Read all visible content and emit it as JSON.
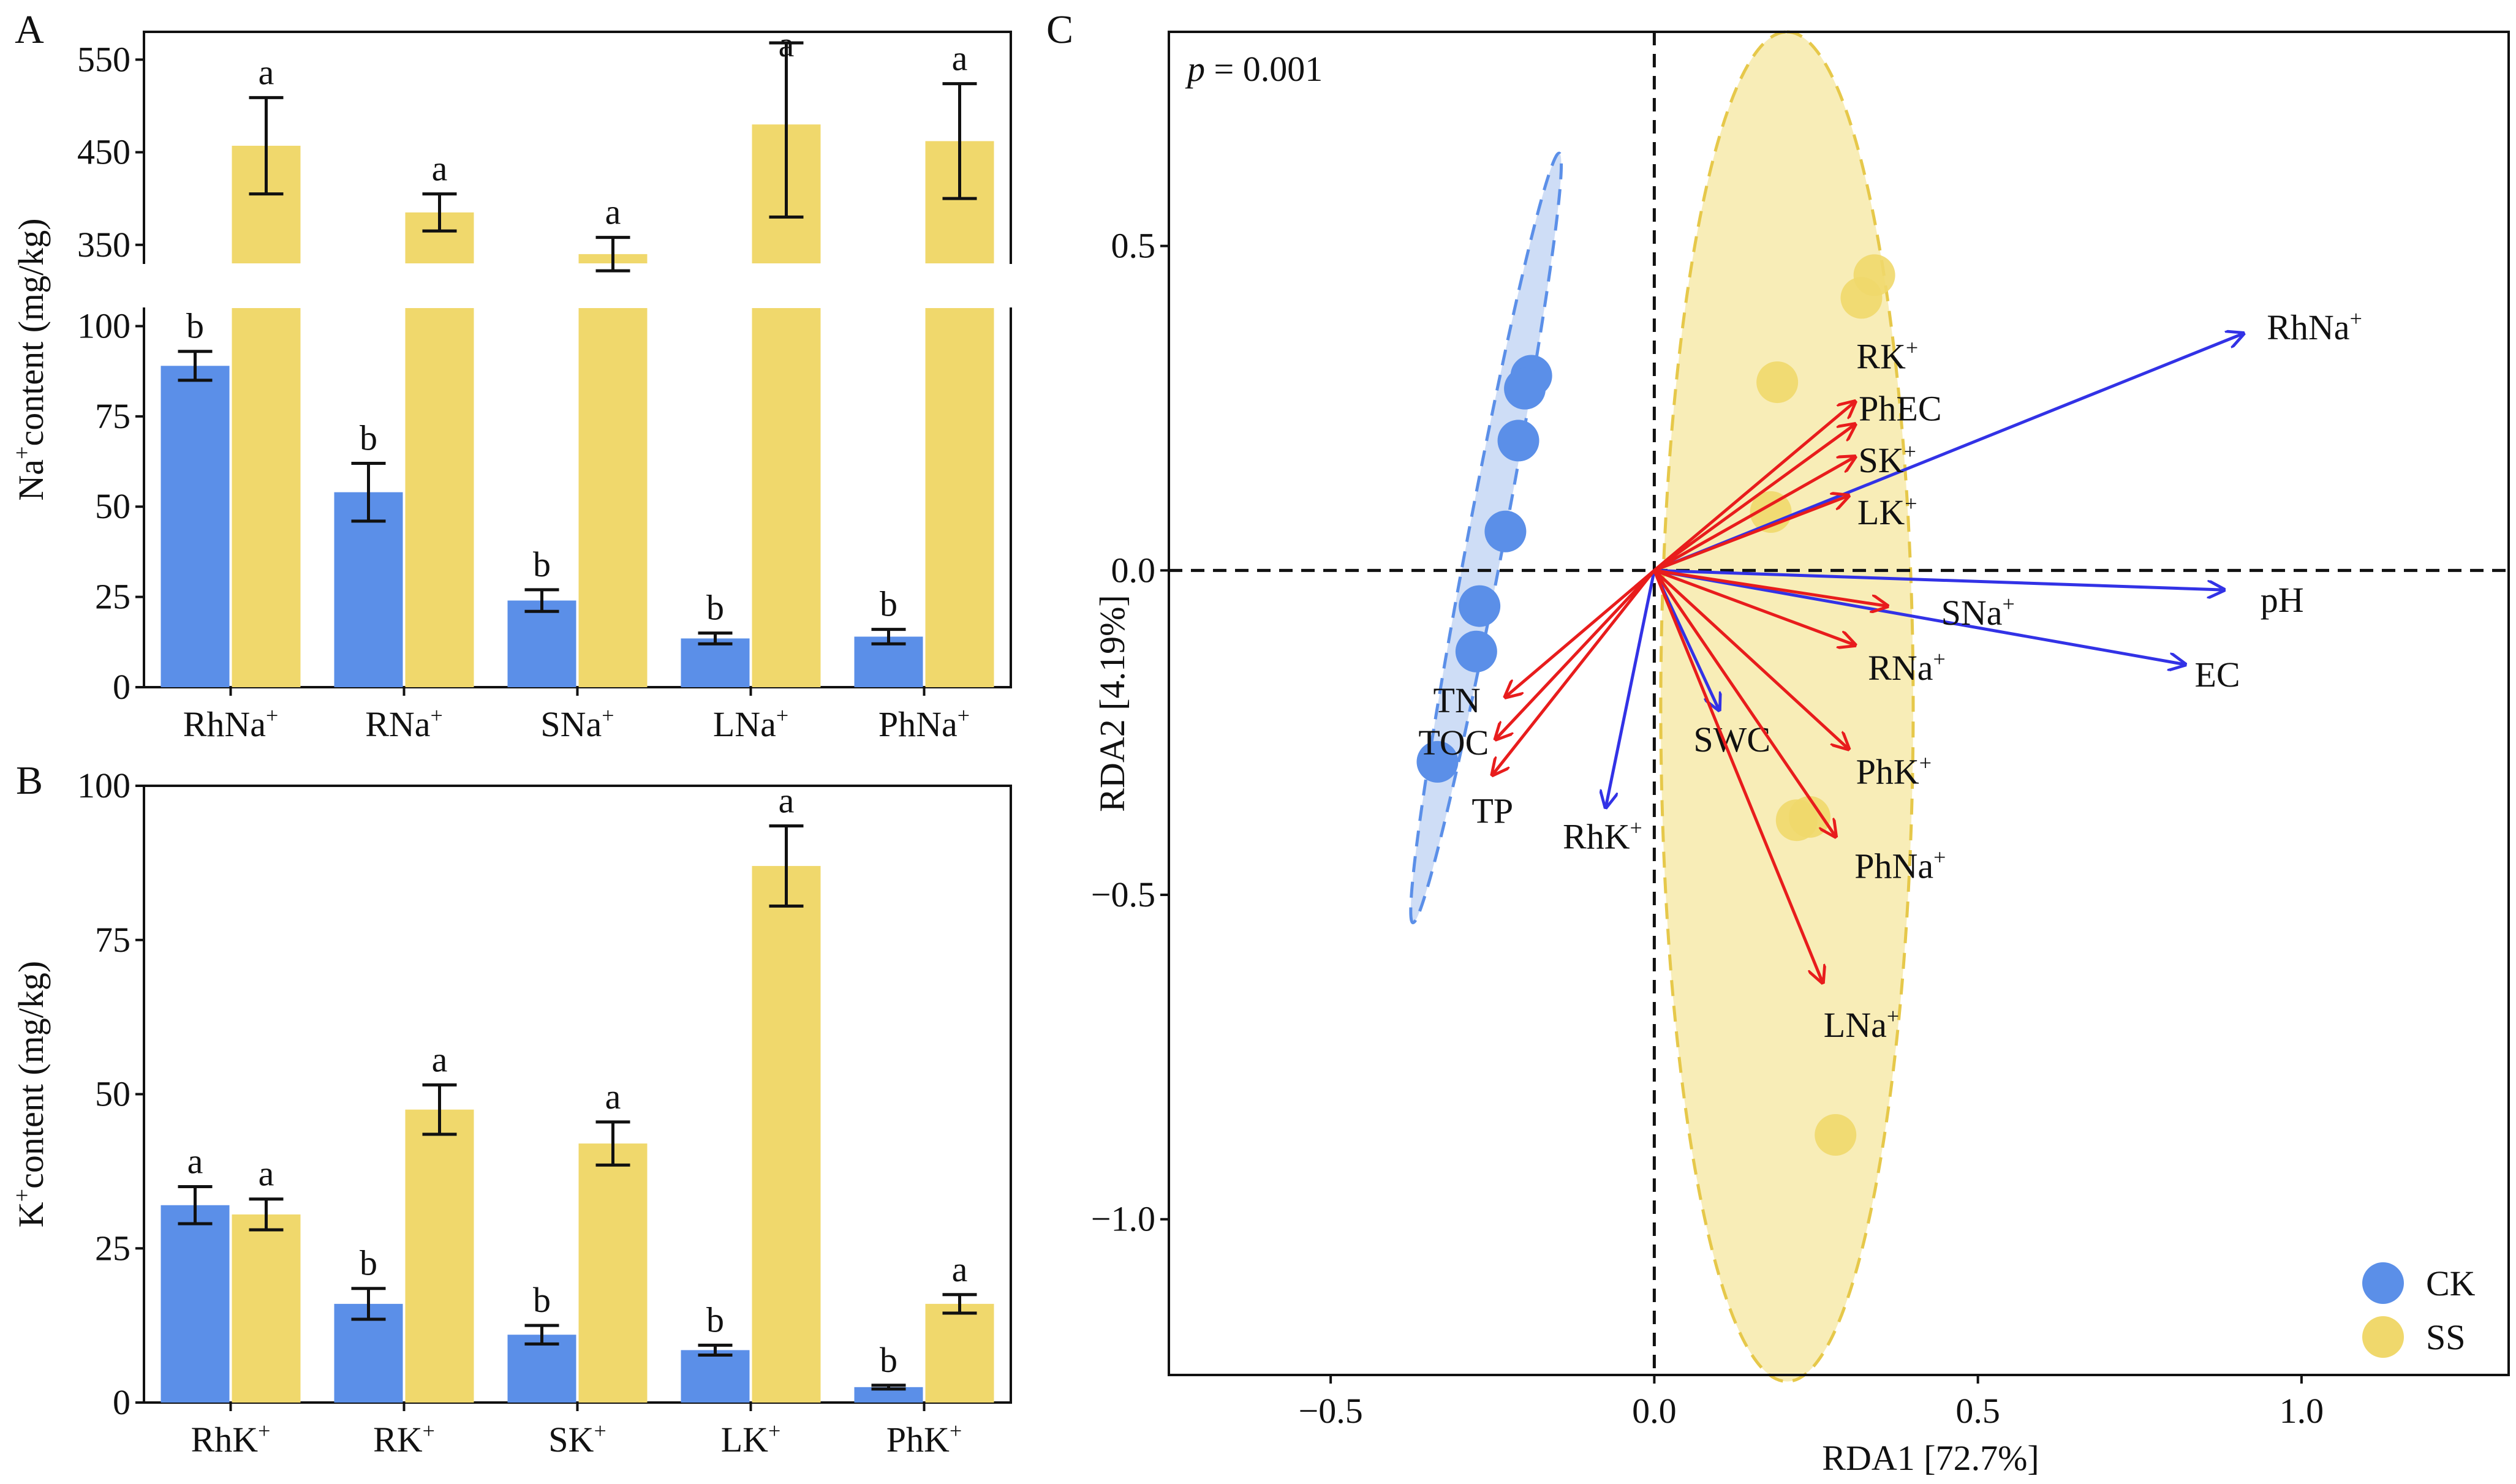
{
  "colors": {
    "ck": "#5b8fe8",
    "ss": "#f0d86c",
    "red_arrow": "#e81c1c",
    "blue_arrow": "#3232e6",
    "ck_ellipse": "#c6d7f4",
    "ss_ellipse": "#f7eaaa"
  },
  "chart_data": [
    {
      "panel": "A",
      "type": "bar",
      "ylabel": "Na+content (mg/kg)",
      "ylabel_main": "Na",
      "ylabel_sup": "+",
      "ylabel_rest": "content (mg/kg)",
      "axis_break": true,
      "ylim_lower": [
        0,
        105
      ],
      "ylim_upper": [
        330,
        580
      ],
      "yticks_lower": [
        0,
        25,
        50,
        75,
        100
      ],
      "yticks_upper": [
        350,
        450,
        550
      ],
      "categories": [
        "RhNa",
        "RNa",
        "SNa",
        "LNa",
        "PhNa"
      ],
      "category_sup": "+",
      "series": [
        {
          "name": "CK",
          "color": "#5b8fe8",
          "values": [
            89,
            54,
            24,
            13.5,
            14
          ],
          "errors": [
            4,
            8,
            3,
            1.5,
            2
          ],
          "letters": [
            "b",
            "b",
            "b",
            "b",
            "b"
          ]
        },
        {
          "name": "SS",
          "color": "#f0d86c",
          "values": [
            457,
            385,
            340,
            480,
            462
          ],
          "errors": [
            52,
            20,
            18,
            100,
            62
          ],
          "letters": [
            "a",
            "a",
            "a",
            "a",
            "a"
          ]
        }
      ]
    },
    {
      "panel": "B",
      "type": "bar",
      "ylabel": "K+content (mg/kg)",
      "ylabel_main": "K",
      "ylabel_sup": "+",
      "ylabel_rest": "content (mg/kg)",
      "ylim": [
        0,
        100
      ],
      "yticks": [
        0,
        25,
        50,
        75,
        100
      ],
      "categories": [
        "RhK",
        "RK",
        "SK",
        "LK",
        "PhK"
      ],
      "category_sup": "+",
      "series": [
        {
          "name": "CK",
          "color": "#5b8fe8",
          "values": [
            32,
            16,
            11,
            8.5,
            2.5
          ],
          "errors": [
            3,
            2.5,
            1.5,
            0.8,
            0.3
          ],
          "letters": [
            "a",
            "b",
            "b",
            "b",
            "b"
          ]
        },
        {
          "name": "SS",
          "color": "#f0d86c",
          "values": [
            30.5,
            47.5,
            42,
            87,
            16
          ],
          "errors": [
            2.5,
            4,
            3.5,
            6.5,
            1.5
          ],
          "letters": [
            "a",
            "a",
            "a",
            "a",
            "a"
          ]
        }
      ]
    },
    {
      "panel": "C",
      "type": "scatter",
      "annotation": "= 0.001",
      "annotation_italic": "p",
      "xlabel": "RDA1 [72.7%]",
      "ylabel": "RDA2 [4.19%]",
      "xlim": [
        -0.75,
        1.32
      ],
      "ylim": [
        -1.24,
        0.83
      ],
      "xticks": [
        -0.5,
        0.0,
        0.5,
        1.0
      ],
      "xtick_labels": [
        "−0.5",
        "0.0",
        "0.5",
        "1.0"
      ],
      "yticks": [
        0.5,
        0.0,
        -0.5,
        -1.0
      ],
      "ytick_labels": [
        "0.5",
        "0.0",
        "−0.5",
        "−1.0"
      ],
      "legend": [
        {
          "name": "CK",
          "color": "#5b8fe8"
        },
        {
          "name": "SS",
          "color": "#f0d86c"
        }
      ],
      "legend_position": "bottom-right",
      "points": {
        "CK": {
          "x": [
            -0.19,
            -0.2,
            -0.21,
            -0.23,
            -0.27,
            -0.275,
            -0.335
          ],
          "y": [
            0.3,
            0.28,
            0.2,
            0.06,
            -0.055,
            -0.125,
            -0.295
          ]
        },
        "SS": {
          "x": [
            0.34,
            0.32,
            0.19,
            0.18,
            0.22,
            0.24,
            0.28
          ],
          "y": [
            0.455,
            0.42,
            0.29,
            0.09,
            -0.385,
            -0.38,
            -0.87
          ]
        }
      },
      "ellipses": {
        "CK": {
          "cx": -0.26,
          "cy": 0.05,
          "rx_dir": [
            -0.113,
            -0.593
          ],
          "minor": 0.028
        },
        "SS": {
          "cx": 0.205,
          "cy": -0.21,
          "rx_dir": [
            0.0,
            1.04
          ],
          "minor": 0.195
        }
      },
      "vectors": [
        {
          "name": "RhNa",
          "sup": "+",
          "x": 0.91,
          "y": 0.365,
          "color": "blue",
          "lx": 1.02,
          "ly": 0.375
        },
        {
          "name": "pH",
          "sup": "",
          "x": 0.88,
          "y": -0.03,
          "color": "blue",
          "lx": 0.97,
          "ly": -0.045
        },
        {
          "name": "EC",
          "sup": "",
          "x": 0.82,
          "y": -0.145,
          "color": "blue",
          "lx": 0.87,
          "ly": -0.16
        },
        {
          "name": "SWC",
          "sup": "",
          "x": 0.1,
          "y": -0.215,
          "color": "blue",
          "lx": 0.12,
          "ly": -0.26
        },
        {
          "name": "RhK",
          "sup": "+",
          "x": -0.075,
          "y": -0.365,
          "color": "blue",
          "lx": -0.08,
          "ly": -0.41
        },
        {
          "name": "RK",
          "sup": "+",
          "x": 0.31,
          "y": 0.26,
          "color": "red",
          "lx": 0.36,
          "ly": 0.33
        },
        {
          "name": "PhEC",
          "sup": "",
          "x": 0.31,
          "y": 0.225,
          "color": "red",
          "lx": 0.38,
          "ly": 0.25
        },
        {
          "name": "SK",
          "sup": "+",
          "x": 0.31,
          "y": 0.175,
          "color": "red",
          "lx": 0.36,
          "ly": 0.17
        },
        {
          "name": "LK",
          "sup": "+",
          "x": 0.3,
          "y": 0.115,
          "color": "red",
          "lx": 0.36,
          "ly": 0.09
        },
        {
          "name": "SNa",
          "sup": "+",
          "x": 0.36,
          "y": -0.055,
          "color": "red",
          "lx": 0.5,
          "ly": -0.065
        },
        {
          "name": "RNa",
          "sup": "+",
          "x": 0.31,
          "y": -0.115,
          "color": "red",
          "lx": 0.39,
          "ly": -0.15
        },
        {
          "name": "PhK",
          "sup": "+",
          "x": 0.3,
          "y": -0.275,
          "color": "red",
          "lx": 0.37,
          "ly": -0.31
        },
        {
          "name": "PhNa",
          "sup": "+",
          "x": 0.28,
          "y": -0.41,
          "color": "red",
          "lx": 0.38,
          "ly": -0.455
        },
        {
          "name": "LNa",
          "sup": "+",
          "x": 0.26,
          "y": -0.635,
          "color": "red",
          "lx": 0.32,
          "ly": -0.7
        },
        {
          "name": "TN",
          "sup": "",
          "x": -0.23,
          "y": -0.195,
          "color": "red",
          "lx": -0.305,
          "ly": -0.2
        },
        {
          "name": "TOC",
          "sup": "",
          "x": -0.245,
          "y": -0.26,
          "color": "red",
          "lx": -0.31,
          "ly": -0.265
        },
        {
          "name": "TP",
          "sup": "",
          "x": -0.25,
          "y": -0.315,
          "color": "red",
          "lx": -0.25,
          "ly": -0.37
        }
      ]
    }
  ],
  "panel_letters": [
    "A",
    "B",
    "C"
  ]
}
